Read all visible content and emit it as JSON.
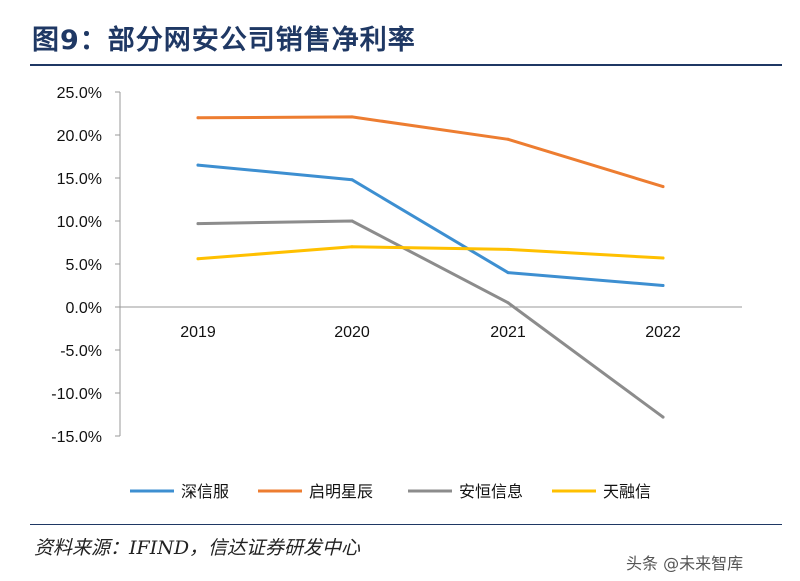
{
  "header": {
    "title": "图9：部分网安公司销售净利率"
  },
  "footer": {
    "source": "资料来源：IFIND，信达证券研发中心",
    "watermark": "头条 @未来智库"
  },
  "chart_data": {
    "type": "line",
    "title": "图9：部分网安公司销售净利率",
    "xlabel": "",
    "ylabel": "",
    "categories": [
      "2019",
      "2020",
      "2021",
      "2022"
    ],
    "ylim": [
      -15,
      25
    ],
    "ytick_step": 5,
    "ytick_labels": [
      "25.0%",
      "20.0%",
      "15.0%",
      "10.0%",
      "5.0%",
      "0.0%",
      "-5.0%",
      "-10.0%",
      "-15.0%"
    ],
    "grid": false,
    "legend_position": "bottom",
    "series": [
      {
        "name": "深信服",
        "values": [
          16.5,
          14.8,
          4.0,
          2.5
        ],
        "color": "#3d8fd1"
      },
      {
        "name": "启明星辰",
        "values": [
          22.0,
          22.1,
          19.5,
          14.0
        ],
        "color": "#ed7d31"
      },
      {
        "name": "安恒信息",
        "values": [
          9.7,
          10.0,
          0.5,
          -12.8
        ],
        "color": "#8c8c8c"
      },
      {
        "name": "天融信",
        "values": [
          5.6,
          7.0,
          6.7,
          5.7
        ],
        "color": "#ffc000"
      }
    ]
  }
}
